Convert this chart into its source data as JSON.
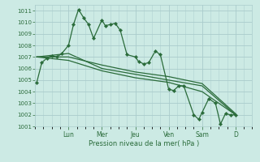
{
  "background_color": "#cceae4",
  "grid_color": "#aacccc",
  "line_color": "#2a6b3a",
  "ylabel_text": "Pression niveau de la mer( hPa )",
  "ylim": [
    1001,
    1011.5
  ],
  "yticks": [
    1001,
    1002,
    1003,
    1004,
    1005,
    1006,
    1007,
    1008,
    1009,
    1010,
    1011
  ],
  "day_labels": [
    "Lun",
    "Mer",
    "Jeu",
    "Ven",
    "Sam",
    "D"
  ],
  "day_positions": [
    1,
    2,
    3,
    4,
    5,
    6
  ],
  "xlim": [
    0.0,
    6.5
  ],
  "series1_x": [
    0.05,
    0.2,
    0.35,
    0.5,
    0.65,
    0.8,
    1.0,
    1.15,
    1.3,
    1.45,
    1.6,
    1.75,
    2.0,
    2.1,
    2.25,
    2.4,
    2.55,
    2.75,
    3.0,
    3.1,
    3.25,
    3.4,
    3.6,
    3.75,
    4.0,
    4.15,
    4.3,
    4.45,
    4.75,
    4.9,
    5.0,
    5.2,
    5.4,
    5.55,
    5.7,
    5.85,
    6.0
  ],
  "series1_y": [
    1004.8,
    1006.5,
    1006.9,
    1007.1,
    1007.0,
    1007.3,
    1008.0,
    1009.8,
    1011.1,
    1010.4,
    1009.8,
    1008.6,
    1010.2,
    1009.7,
    1009.8,
    1009.9,
    1009.3,
    1007.2,
    1007.0,
    1006.6,
    1006.4,
    1006.5,
    1007.5,
    1007.2,
    1004.2,
    1004.1,
    1004.5,
    1004.5,
    1002.0,
    1001.6,
    1002.2,
    1003.4,
    1003.0,
    1001.2,
    1002.1,
    1002.0,
    1002.0
  ],
  "series2_x": [
    0.05,
    1.0,
    2.0,
    3.0,
    4.0,
    5.0,
    6.0
  ],
  "series2_y": [
    1007.0,
    1007.3,
    1006.0,
    1005.5,
    1005.0,
    1004.5,
    1002.0
  ],
  "series3_x": [
    0.05,
    1.0,
    2.0,
    3.0,
    4.0,
    5.0,
    6.0
  ],
  "series3_y": [
    1007.0,
    1006.7,
    1005.8,
    1005.2,
    1004.8,
    1004.0,
    1002.0
  ],
  "series4_x": [
    0.05,
    1.0,
    2.0,
    3.0,
    4.0,
    5.0,
    6.0
  ],
  "series4_y": [
    1007.0,
    1007.0,
    1006.3,
    1005.7,
    1005.3,
    1004.7,
    1002.1
  ]
}
